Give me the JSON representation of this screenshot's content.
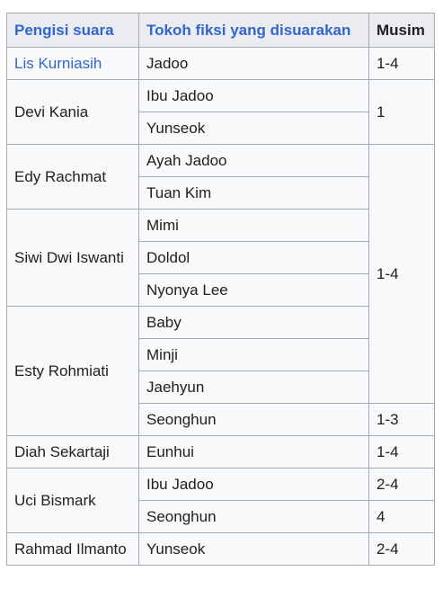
{
  "table": {
    "headers": [
      "Pengisi suara",
      "Tokoh fiksi yang disuarakan",
      "Musim"
    ],
    "rows": {
      "lis_kurniasih": {
        "actor": "Lis Kurniasih",
        "roles": [
          "Jadoo"
        ]
      },
      "devi_kania": {
        "actor": "Devi Kania",
        "roles": [
          "Ibu Jadoo",
          "Yunseok"
        ]
      },
      "edy_rachmat": {
        "actor": "Edy Rachmat",
        "roles": [
          "Ayah Jadoo",
          "Tuan Kim"
        ]
      },
      "siwi_dwi_iswanti": {
        "actor": "Siwi Dwi Iswanti",
        "roles": [
          "Mimi",
          "Doldol",
          "Nyonya Lee"
        ]
      },
      "esty_rohmiati": {
        "actor": "Esty Rohmiati",
        "roles": [
          "Baby",
          "Minji",
          "Jaehyun",
          "Seonghun"
        ]
      },
      "diah_sekartaji": {
        "actor": "Diah Sekartaji",
        "roles": [
          "Eunhui"
        ]
      },
      "uci_bismark": {
        "actor": "Uci Bismark",
        "roles": [
          "Ibu Jadoo",
          "Seonghun"
        ]
      },
      "rahmad_ilmanto": {
        "actor": "Rahmad Ilmanto",
        "roles": [
          "Yunseok"
        ]
      }
    },
    "seasons": {
      "lis_kurniasih_jadoo": "1-4",
      "devi_kania_group": "1",
      "edy_to_esty_group": "1-4",
      "esty_seonghun": "1-3",
      "diah_eunhui": "1-4",
      "uci_ibu_jadoo": "2-4",
      "uci_seonghun": "4",
      "rahmad_yunseok": "2-4"
    }
  }
}
